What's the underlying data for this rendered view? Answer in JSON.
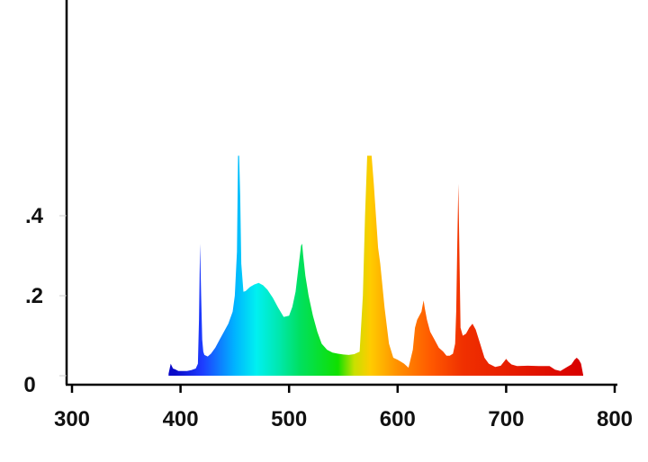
{
  "chart_data": {
    "type": "area",
    "title": "",
    "xlabel": "",
    "ylabel": "",
    "xlim": [
      300,
      800
    ],
    "ylim": [
      0,
      0.48
    ],
    "x_ticks": [
      {
        "value": 300,
        "label": "300"
      },
      {
        "value": 400,
        "label": "400"
      },
      {
        "value": 500,
        "label": "500"
      },
      {
        "value": 600,
        "label": "600"
      },
      {
        "value": 700,
        "label": "700"
      },
      {
        "value": 800,
        "label": "800"
      }
    ],
    "y_ticks": [
      {
        "value": 0,
        "label": "0"
      },
      {
        "value": 0.2,
        "label": ".2"
      },
      {
        "value": 0.4,
        "label": ".4"
      }
    ],
    "grid": false,
    "fill": "visible-spectrum gradient by wavelength",
    "series": [
      {
        "x": [
          389,
          391,
          393,
          395,
          398,
          402,
          406,
          410,
          414,
          416,
          417,
          418,
          419,
          420,
          421,
          422,
          425,
          428,
          432,
          436,
          440,
          444,
          448,
          450,
          452,
          453,
          454,
          455,
          456,
          458,
          460,
          464,
          468,
          472,
          476,
          480,
          485,
          490,
          495,
          500,
          503,
          506,
          509,
          511,
          512,
          513,
          515,
          518,
          522,
          526,
          530,
          535,
          540,
          545,
          550,
          555,
          560,
          565,
          568,
          570,
          572,
          574,
          576,
          578,
          580,
          582,
          584,
          588,
          592,
          596,
          600,
          603,
          606,
          610,
          614,
          616,
          618,
          620,
          622,
          623,
          624,
          625,
          627,
          630,
          634,
          638,
          642,
          645,
          648,
          651,
          653,
          654,
          655,
          656,
          657,
          658,
          660,
          663,
          666,
          669,
          672,
          676,
          680,
          684,
          690,
          695,
          698,
          700,
          702,
          705,
          710,
          720,
          730,
          740,
          745,
          750,
          755,
          760,
          763,
          765,
          767,
          769,
          771
        ],
        "y": [
          0.005,
          0.03,
          0.018,
          0.016,
          0.012,
          0.012,
          0.012,
          0.014,
          0.018,
          0.03,
          0.14,
          0.33,
          0.2,
          0.09,
          0.06,
          0.052,
          0.048,
          0.055,
          0.07,
          0.09,
          0.11,
          0.13,
          0.16,
          0.2,
          0.31,
          0.55,
          0.55,
          0.45,
          0.28,
          0.21,
          0.212,
          0.222,
          0.228,
          0.232,
          0.226,
          0.215,
          0.195,
          0.17,
          0.147,
          0.15,
          0.172,
          0.21,
          0.28,
          0.325,
          0.33,
          0.3,
          0.25,
          0.2,
          0.15,
          0.11,
          0.08,
          0.065,
          0.058,
          0.055,
          0.053,
          0.052,
          0.054,
          0.06,
          0.2,
          0.4,
          0.55,
          0.55,
          0.55,
          0.48,
          0.4,
          0.32,
          0.28,
          0.17,
          0.08,
          0.045,
          0.04,
          0.035,
          0.03,
          0.02,
          0.065,
          0.12,
          0.14,
          0.15,
          0.16,
          0.175,
          0.188,
          0.17,
          0.14,
          0.11,
          0.09,
          0.07,
          0.06,
          0.05,
          0.05,
          0.055,
          0.08,
          0.16,
          0.33,
          0.48,
          0.3,
          0.12,
          0.1,
          0.105,
          0.12,
          0.13,
          0.115,
          0.08,
          0.045,
          0.03,
          0.022,
          0.025,
          0.035,
          0.042,
          0.035,
          0.028,
          0.024,
          0.025,
          0.024,
          0.024,
          0.015,
          0.012,
          0.02,
          0.028,
          0.04,
          0.045,
          0.04,
          0.03,
          0.002
        ]
      }
    ]
  }
}
